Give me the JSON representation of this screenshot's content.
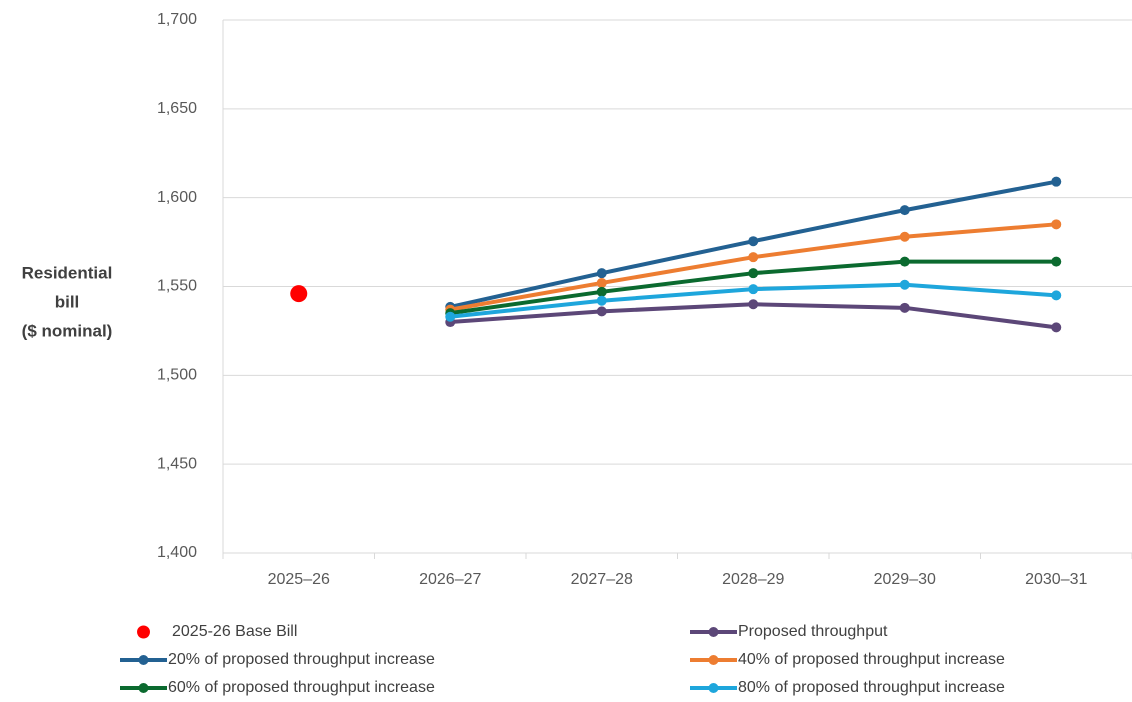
{
  "chart_data": {
    "type": "line",
    "ylabel": [
      "Residential",
      "bill",
      "($ nominal)"
    ],
    "categories": [
      "2025–26",
      "2026–27",
      "2027–28",
      "2028–29",
      "2029–30",
      "2030–31"
    ],
    "series": [
      {
        "name": "2025-26 Base Bill",
        "color": "#ff0000",
        "style": "marker",
        "values": [
          1546,
          null,
          null,
          null,
          null,
          null
        ]
      },
      {
        "name": "Proposed throughput",
        "color": "#5c4778",
        "style": "line",
        "values": [
          null,
          1530,
          1536,
          1540,
          1538,
          1527
        ]
      },
      {
        "name": "20% of proposed throughput increase",
        "color": "#236192",
        "style": "line",
        "values": [
          null,
          1538.5,
          1557.5,
          1575.5,
          1593,
          1609
        ]
      },
      {
        "name": "40% of proposed throughput increase",
        "color": "#ed7d31",
        "style": "line",
        "values": [
          null,
          1537,
          1552,
          1566.5,
          1578,
          1585
        ]
      },
      {
        "name": "60% of proposed throughput increase",
        "color": "#0b6a2f",
        "style": "line",
        "values": [
          null,
          1535,
          1547,
          1557.5,
          1564,
          1564
        ]
      },
      {
        "name": "80% of proposed throughput increase",
        "color": "#1ea6dc",
        "style": "line",
        "values": [
          null,
          1533,
          1542,
          1548.5,
          1551,
          1545
        ]
      }
    ],
    "ylim": [
      1400,
      1700
    ],
    "yticks": [
      {
        "value": 1400,
        "label": "1,400"
      },
      {
        "value": 1450,
        "label": "1,450"
      },
      {
        "value": 1500,
        "label": "1,500"
      },
      {
        "value": 1550,
        "label": "1,550"
      },
      {
        "value": 1600,
        "label": "1,600"
      },
      {
        "value": 1650,
        "label": "1,650"
      },
      {
        "value": 1700,
        "label": "1,700"
      }
    ],
    "grid": true
  }
}
